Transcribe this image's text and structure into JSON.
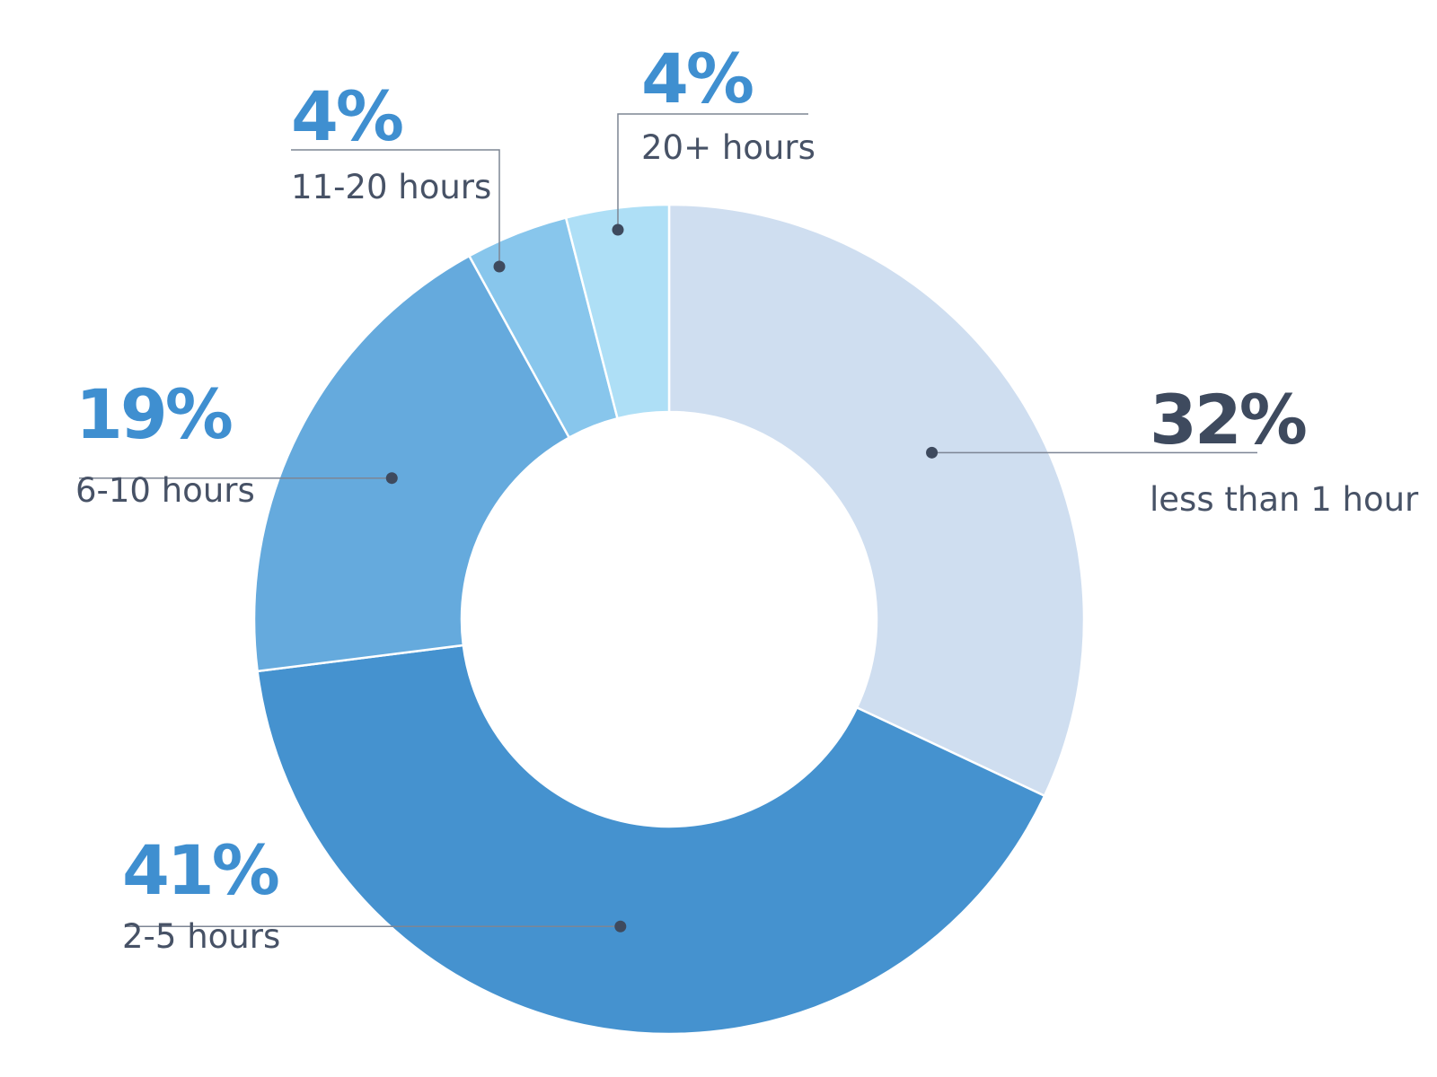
{
  "chart_data": {
    "type": "pie",
    "variant": "donut",
    "unit": "%",
    "categories": [
      "less than 1 hour",
      "2-5 hours",
      "6-10 hours",
      "11-20 hours",
      "20+ hours"
    ],
    "values": [
      32,
      41,
      19,
      4,
      4
    ],
    "value_labels": [
      "32%",
      "41%",
      "19%",
      "4%",
      "4%"
    ],
    "colors": [
      "#cfdef0",
      "#4592cf",
      "#65aadd",
      "#88c6ec",
      "#aedff6"
    ],
    "label_colors": [
      "#3e4a5e",
      "#3f8fd0",
      "#3f8fd0",
      "#3f8fd0",
      "#3f8fd0"
    ],
    "leader_color": "#3e4a5e",
    "start": "top, clockwise",
    "legend": "none"
  }
}
